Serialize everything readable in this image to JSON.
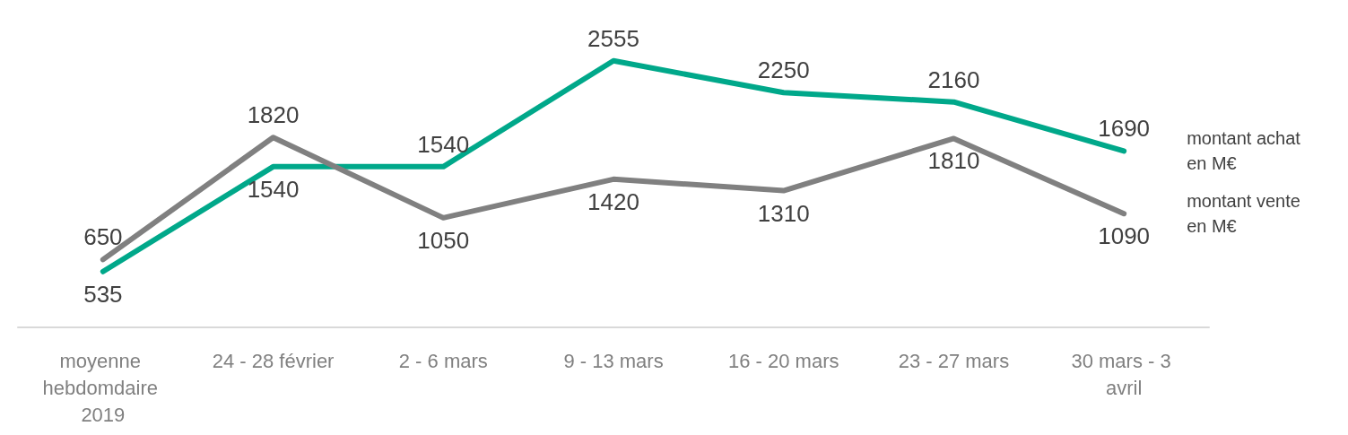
{
  "chart_data": {
    "type": "line",
    "categories": [
      "moyenne hebdomdaire 2019",
      "24 - 28 février",
      "2 - 6 mars",
      "9 - 13 mars",
      "16 - 20 mars",
      "23 - 27 mars",
      "30 mars - 3 avril"
    ],
    "series": [
      {
        "name": "montant achat en M€",
        "color": "#00a88a",
        "values": [
          535,
          1540,
          1540,
          2555,
          2250,
          2160,
          1690
        ]
      },
      {
        "name": "montant vente en M€",
        "color": "#808080",
        "values": [
          650,
          1820,
          1050,
          1420,
          1310,
          1810,
          1090
        ]
      }
    ],
    "data_labels": true,
    "legend": false,
    "grid": false,
    "marker": "none",
    "line_style": "solid"
  }
}
